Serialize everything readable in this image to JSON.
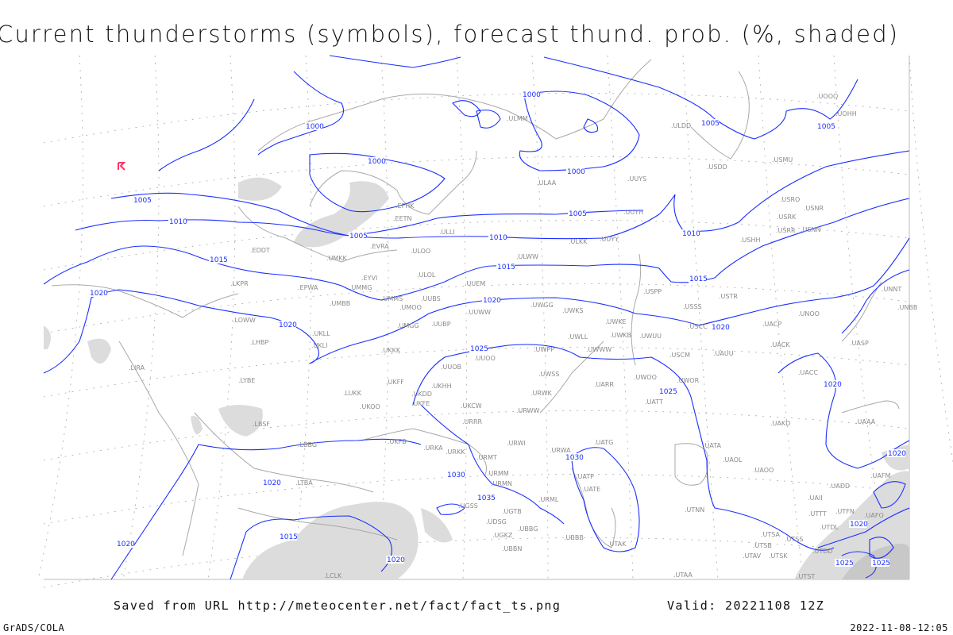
{
  "title": "Current thunderstorms (symbols), forecast thund. prob. (%, shaded)",
  "footer": {
    "source": "Saved from URL http://meteocenter.net/fact/fact_ts.png",
    "valid": "Valid: 20221108 12Z",
    "software": "GrADS/COLA",
    "timestamp": "2022-11-08-12:05"
  },
  "colors": {
    "isobar": "#1a2eff",
    "station": "#8a8a8a",
    "coastline": "#a8a8a8",
    "shading": "#dcdcdc",
    "thunderstorm_symbol": "#ff3366"
  },
  "symbols": [
    {
      "type": "thunderstorm",
      "icon": "thunderstorm-symbol-icon"
    }
  ],
  "isobar_labels": [
    "1000",
    "1000",
    "1000",
    "1000",
    "1005",
    "1005",
    "1005",
    "1005",
    "1005",
    "1010",
    "1010",
    "1010",
    "1015",
    "1015",
    "1015",
    "1020",
    "1020",
    "1020",
    "1020",
    "1020",
    "1020",
    "1020",
    "1025",
    "1025",
    "1025",
    "1030",
    "1030",
    "1035",
    "1020",
    "1020",
    "1025",
    "1015",
    "1020"
  ],
  "stations": [
    "EDDT",
    "LKPR",
    "EPWA",
    "EYVI",
    "UMMG",
    "UMBB",
    "UMMS",
    "UMOO",
    "UUBS",
    "ULOL",
    "UUEM",
    "UUWW",
    "UWGG",
    "UWKS",
    "UWKE",
    "UWKB",
    "UWUU",
    "UWLL",
    "UWWW",
    "UWPP",
    "UUOO",
    "UUOB",
    "UKHH",
    "UKDD",
    "UKFF",
    "UKKK",
    "UMGG",
    "UUBP",
    "UKLL",
    "UKLI",
    "LOWW",
    "LHBP",
    "LIRA",
    "LYBE",
    "LUKK",
    "UKOO",
    "UKFE",
    "UKCW",
    "URRR",
    "URWW",
    "UWSS",
    "URWK",
    "UARR",
    "UWOO",
    "UWOR",
    "UATT",
    "LBSF",
    "LBBG",
    "LTBA",
    "UKFB",
    "URKA",
    "URKK",
    "URMT",
    "URWI",
    "URWA",
    "UATG",
    "URMM",
    "URMN",
    "UGSS",
    "UGTB",
    "UDSG",
    "UBBG",
    "UGKZ",
    "UBBN",
    "UBBB",
    "URML",
    "UATP",
    "UATE",
    "UTAK",
    "UATA",
    "UAOL",
    "UAOO",
    "UTNN",
    "UTAA",
    "UAKD",
    "UACC",
    "UACK",
    "UACP",
    "UNOO",
    "UASP",
    "UNNT",
    "UNBB",
    "USSS",
    "USTR",
    "USCC",
    "USCM",
    "UAUU",
    "USPP",
    "USHH",
    "USRR",
    "USNN",
    "USRK",
    "USNR",
    "USRO",
    "USMU",
    "USDD",
    "UUYS",
    "UUYH",
    "UUYY",
    "ULKK",
    "ULWW",
    "ULOO",
    "EVRA",
    "UMKK",
    "ULLI",
    "EETN",
    "EFHK",
    "ULAA",
    "ULMM",
    "ULDD",
    "UOOO",
    "UOHH",
    "UAFM",
    "UADD",
    "UAII",
    "UTTT",
    "UTFN",
    "UAFO",
    "UTDL",
    "UTSA",
    "UTSB",
    "UTSS",
    "UTAV",
    "UTSK",
    "UTDD",
    "UTST",
    "UAAA",
    "LCLK"
  ]
}
